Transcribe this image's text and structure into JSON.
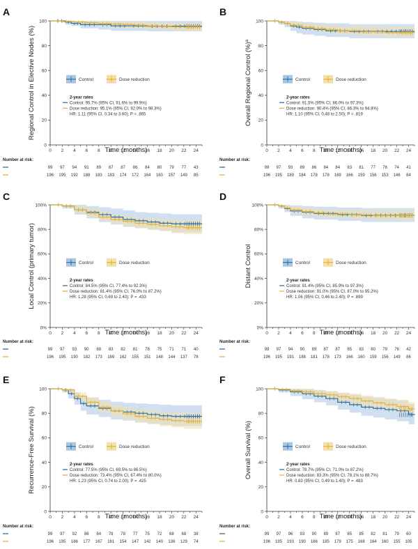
{
  "colors": {
    "control": "#2f6f9e",
    "dose_reduction": "#e3b23c",
    "control_band": "#a9c6e3",
    "dose_band": "#f3dfa8",
    "axis": "#333333"
  },
  "x_tick_labels": [
    "0",
    "2",
    "4",
    "6",
    "8",
    "10",
    "12",
    "14",
    "16",
    "18",
    "20",
    "22",
    "24"
  ],
  "chart_data": [
    {
      "panel": "A",
      "type": "line",
      "ylabel": "Regional Control in Elective Nodes (%)",
      "xlabel": "Time (months)",
      "xlim": [
        0,
        25
      ],
      "ylim": [
        0,
        100
      ],
      "y_ticks": [
        0,
        20,
        40,
        60,
        80,
        100
      ],
      "y_tick_labels": [
        "0",
        "20",
        "40",
        "60",
        "80",
        "100"
      ],
      "legend": [
        "Control",
        "Dose reduction"
      ],
      "stats_title": "2-year rates",
      "stats": [
        "Control: 95.7% (95% CI, 91.6% to 99.9%)",
        "Dose reduction: 95.1% (95% CI, 92.0% to 98.3%)",
        "HR: 1.11 (95% CI, 0.34 to 3.60); P = .865"
      ],
      "risk_title": "Number at risk:",
      "risk_control": [
        "99",
        "97",
        "94",
        "91",
        "89",
        "87",
        "87",
        "86",
        "84",
        "80",
        "79",
        "77",
        "43"
      ],
      "risk_dose": [
        "196",
        "195",
        "192",
        "188",
        "183",
        "183",
        "174",
        "172",
        "164",
        "160",
        "157",
        "149",
        "85"
      ],
      "series": [
        {
          "name": "Control",
          "x": [
            0,
            2.5,
            3.5,
            5,
            8,
            10,
            13,
            16,
            20,
            25
          ],
          "y": [
            100,
            99,
            98,
            97,
            97,
            96,
            96,
            95.7,
            95.7,
            95.7
          ],
          "lo": [
            100,
            97,
            96,
            94,
            93,
            92,
            92,
            91.6,
            91.6,
            91.6
          ],
          "hi": [
            100,
            100,
            100,
            99.9,
            99.9,
            99.9,
            99.9,
            99.9,
            99.9,
            99.9
          ]
        },
        {
          "name": "Dose reduction",
          "x": [
            0,
            2,
            4,
            6,
            8,
            10,
            12,
            14,
            16,
            18,
            20,
            22,
            25
          ],
          "y": [
            100,
            99.5,
            99,
            98.5,
            98,
            97.5,
            97,
            96.5,
            96,
            95.5,
            95.2,
            95.1,
            95.1
          ],
          "lo": [
            100,
            98.5,
            97.5,
            96.5,
            96,
            95,
            94.5,
            94,
            93.5,
            93,
            92.5,
            92,
            92
          ],
          "hi": [
            100,
            100,
            100,
            100,
            99.8,
            99.5,
            99.2,
            99,
            98.8,
            98.5,
            98.4,
            98.3,
            98.3
          ]
        }
      ]
    },
    {
      "panel": "B",
      "type": "line",
      "ylabel": "Overall Regional Control (%)",
      "ylabel_sup": "a",
      "xlabel": "Time (months)",
      "xlim": [
        0,
        25
      ],
      "ylim": [
        0,
        100
      ],
      "y_ticks": [
        0,
        20,
        40,
        60,
        80,
        100
      ],
      "y_tick_labels": [
        "0",
        "20",
        "40",
        "60",
        "80",
        "100"
      ],
      "legend": [
        "Control",
        "Dose reduction"
      ],
      "stats_title": "2-year rates",
      "stats": [
        "Control: 91.5% (95% CI, 86.0% to 97.3%)",
        "Dose reduction: 90.4% (95% CI, 86.3% to 94.8%)",
        "HR: 1.10 (95% CI, 0.48 to 2.50); P = .819"
      ],
      "risk_title": "Number at risk:",
      "risk_control": [
        "99",
        "97",
        "93",
        "89",
        "86",
        "84",
        "84",
        "83",
        "81",
        "77",
        "76",
        "74",
        "41"
      ],
      "risk_dose": [
        "196",
        "195",
        "189",
        "184",
        "178",
        "178",
        "169",
        "166",
        "159",
        "156",
        "153",
        "146",
        "84"
      ],
      "series": [
        {
          "name": "Control",
          "x": [
            0,
            2,
            3,
            4,
            5,
            6,
            8,
            10,
            14,
            18,
            25
          ],
          "y": [
            100,
            99,
            98,
            96,
            95,
            94,
            93,
            92,
            91.5,
            91.5,
            91.5
          ],
          "lo": [
            100,
            97,
            95,
            92,
            90,
            89,
            88,
            87,
            86,
            86,
            86
          ],
          "hi": [
            100,
            100,
            100,
            99.9,
            99.5,
            99,
            98.5,
            98,
            97.3,
            97.3,
            97.3
          ]
        },
        {
          "name": "Dose reduction",
          "x": [
            0,
            2,
            3,
            4,
            6,
            8,
            10,
            12,
            16,
            20,
            25
          ],
          "y": [
            100,
            99,
            98,
            96.5,
            95,
            94,
            93,
            92,
            91.2,
            90.6,
            90.4
          ],
          "lo": [
            100,
            98,
            96.5,
            94.5,
            92.5,
            91,
            90,
            89,
            88,
            87,
            86.3
          ],
          "hi": [
            100,
            100,
            99.8,
            99,
            98,
            97.3,
            96.5,
            96,
            95.5,
            95,
            94.8
          ]
        }
      ]
    },
    {
      "panel": "C",
      "type": "line",
      "ylabel": "Local Control (primary tumor)",
      "xlabel": "Time (months)",
      "xlim": [
        0,
        25
      ],
      "ylim": [
        0,
        100
      ],
      "y_ticks": [
        0,
        20,
        40,
        60,
        80,
        100
      ],
      "y_tick_labels": [
        "0%",
        "20%",
        "40%",
        "60%",
        "80%",
        "100%"
      ],
      "legend": [
        "Control",
        "Dose reduction"
      ],
      "stats_title": "2-year rates",
      "stats": [
        "Control: 84.5% (95% CI, 77.4% to 92.3%)",
        "Dose reduction: 81.4% (95% CI, 76.0% to 87.2%)",
        "HR: 1.28 (95% CI, 0.69 to 2.40); P = .433"
      ],
      "risk_title": "Number at risk:",
      "risk_control": [
        "99",
        "97",
        "93",
        "90",
        "88",
        "83",
        "82",
        "81",
        "78",
        "75",
        "71",
        "71",
        "40"
      ],
      "risk_dose": [
        "196",
        "195",
        "190",
        "182",
        "173",
        "169",
        "162",
        "155",
        "151",
        "148",
        "144",
        "137",
        "78"
      ],
      "series": [
        {
          "name": "Control",
          "x": [
            0,
            2,
            4,
            6,
            8,
            10,
            12,
            14,
            16,
            18,
            20,
            25
          ],
          "y": [
            100,
            99,
            96,
            94,
            92,
            90,
            88,
            87,
            86,
            85,
            84.5,
            84.5
          ],
          "lo": [
            100,
            97,
            92,
            89,
            86,
            84,
            82,
            81,
            80,
            79,
            77.4,
            77.4
          ],
          "hi": [
            100,
            100,
            100,
            99,
            98,
            97,
            95.5,
            94,
            93.5,
            93,
            92.3,
            92.3
          ]
        },
        {
          "name": "Dose reduction",
          "x": [
            0,
            2,
            4,
            6,
            8,
            10,
            12,
            14,
            16,
            18,
            20,
            22,
            25
          ],
          "y": [
            100,
            99,
            96,
            93,
            90,
            88,
            86.5,
            85,
            84,
            83,
            82,
            81.4,
            81.4
          ],
          "lo": [
            100,
            98,
            93,
            90,
            87,
            84.5,
            82.5,
            81,
            79.5,
            78.5,
            77,
            76,
            76
          ],
          "hi": [
            100,
            100,
            99,
            97,
            94.5,
            92,
            90.5,
            89.5,
            88.5,
            88,
            87.5,
            87.2,
            87.2
          ]
        }
      ]
    },
    {
      "panel": "D",
      "type": "line",
      "ylabel": "Distant Control",
      "xlabel": "Time (months)",
      "xlim": [
        0,
        25
      ],
      "ylim": [
        0,
        100
      ],
      "y_ticks": [
        0,
        20,
        40,
        60,
        80,
        100
      ],
      "y_tick_labels": [
        "0%",
        "20%",
        "40%",
        "60%",
        "80%",
        "100%"
      ],
      "legend": [
        "Control",
        "Dose reduction"
      ],
      "stats_title": "2-year rates",
      "stats": [
        "Control: 91.4% (95% CI, 85.9% to 97.3%)",
        "Dose reduction: 91.0% (95% CI, 87.0% to 95.2%)",
        "HR: 1.06 (95% CI, 0.46 to 2.40); P = .899"
      ],
      "risk_title": "Number at risk:",
      "risk_control": [
        "99",
        "97",
        "94",
        "90",
        "89",
        "87",
        "87",
        "85",
        "83",
        "80",
        "79",
        "76",
        "42"
      ],
      "risk_dose": [
        "196",
        "195",
        "191",
        "188",
        "181",
        "178",
        "173",
        "166",
        "160",
        "159",
        "156",
        "149",
        "86"
      ],
      "series": [
        {
          "name": "Control",
          "x": [
            0,
            2,
            3,
            4,
            6,
            8,
            12,
            16,
            25
          ],
          "y": [
            100,
            99,
            97,
            95,
            94,
            93,
            92,
            91.4,
            91.4
          ],
          "lo": [
            100,
            97,
            94,
            91,
            89,
            88,
            87,
            86,
            85.9
          ],
          "hi": [
            100,
            100,
            100,
            99.5,
            99,
            98.5,
            97.8,
            97.3,
            97.3
          ]
        },
        {
          "name": "Dose reduction",
          "x": [
            0,
            2,
            3,
            4,
            6,
            8,
            10,
            14,
            18,
            25
          ],
          "y": [
            100,
            99,
            97.5,
            96,
            94.5,
            93.5,
            92.5,
            91.8,
            91.2,
            91
          ],
          "lo": [
            100,
            98,
            95.5,
            93.5,
            91.5,
            90.5,
            89.5,
            88.5,
            87.5,
            87
          ],
          "hi": [
            100,
            100,
            99.5,
            98.5,
            97.5,
            96.5,
            96,
            95.6,
            95.3,
            95.2
          ]
        }
      ]
    },
    {
      "panel": "E",
      "type": "line",
      "ylabel": "Recurrence-Free Survival (%)",
      "xlabel": "Time (months)",
      "xlim": [
        0,
        25
      ],
      "ylim": [
        0,
        100
      ],
      "y_ticks": [
        0,
        20,
        40,
        60,
        80,
        100
      ],
      "y_tick_labels": [
        "0",
        "20",
        "40",
        "60",
        "80",
        "100"
      ],
      "legend": [
        "Control",
        "Dose reduction"
      ],
      "stats_title": "2-year rates",
      "stats": [
        "Control: 77.5% (95% CI, 69.5% to 86.5%)",
        "Dose reduction: 73.4% (95% CI, 67.4% to 80.0%)",
        "HR: 1.23 (95% CI, 0.74 to 2.00); P = .425"
      ],
      "risk_title": "Number at risk:",
      "risk_control": [
        "99",
        "97",
        "92",
        "86",
        "84",
        "78",
        "78",
        "77",
        "75",
        "72",
        "68",
        "68",
        "38"
      ],
      "risk_dose": [
        "196",
        "195",
        "186",
        "177",
        "167",
        "161",
        "154",
        "147",
        "142",
        "140",
        "136",
        "129",
        "74"
      ],
      "series": [
        {
          "name": "Control",
          "x": [
            0,
            2,
            3,
            4,
            5,
            6,
            8,
            10,
            12,
            14,
            16,
            18,
            20,
            25
          ],
          "y": [
            100,
            99,
            96,
            92,
            88,
            86,
            84,
            82,
            81,
            80,
            79,
            78,
            77.5,
            77.5
          ],
          "lo": [
            100,
            97,
            92,
            87,
            82,
            79,
            77,
            75,
            74,
            72.5,
            71.5,
            70.5,
            69.5,
            69.5
          ],
          "hi": [
            100,
            100,
            100,
            97,
            94,
            93,
            91,
            89.5,
            88.5,
            88,
            87.5,
            87,
            86.5,
            86.5
          ]
        },
        {
          "name": "Dose reduction",
          "x": [
            0,
            2,
            4,
            6,
            8,
            10,
            12,
            14,
            16,
            18,
            20,
            22,
            25
          ],
          "y": [
            100,
            99,
            94,
            89,
            85,
            82,
            79.5,
            77.5,
            76,
            75,
            74,
            73.4,
            73.4
          ],
          "lo": [
            100,
            97.5,
            90.5,
            85,
            80.5,
            77.5,
            74.5,
            72.5,
            71,
            69.5,
            68.5,
            67.4,
            67.4
          ],
          "hi": [
            100,
            100,
            97,
            93,
            89.5,
            86.5,
            84.5,
            83,
            82,
            81,
            80.5,
            80,
            80
          ]
        }
      ]
    },
    {
      "panel": "F",
      "type": "line",
      "ylabel": "Overall Survival (%)",
      "xlabel": "Time (months)",
      "xlim": [
        0,
        25
      ],
      "ylim": [
        0,
        100
      ],
      "y_ticks": [
        0,
        20,
        40,
        60,
        80,
        100
      ],
      "y_tick_labels": [
        "0",
        "20",
        "40",
        "60",
        "80",
        "100"
      ],
      "legend": [
        "Control",
        "Dose reduction"
      ],
      "stats_title": "2-year rates",
      "stats": [
        "Control: 78.7% (95% CI, 71.0% to 87.2%)",
        "Dose reduction: 83.3% (95% CI, 78.1% to 88.7%)",
        "HR: 0.83 (95% CI, 0.49 to 1.40); P = .483"
      ],
      "risk_title": "Number at risk:",
      "risk_control": [
        "99",
        "97",
        "96",
        "93",
        "90",
        "89",
        "87",
        "85",
        "85",
        "82",
        "81",
        "79",
        "60"
      ],
      "risk_dose": [
        "196",
        "195",
        "193",
        "190",
        "186",
        "185",
        "179",
        "175",
        "168",
        "164",
        "160",
        "155",
        "105"
      ],
      "series": [
        {
          "name": "Control",
          "x": [
            0,
            2,
            4,
            6,
            8,
            10,
            12,
            14,
            16,
            18,
            20,
            22,
            24,
            25
          ],
          "y": [
            100,
            99,
            97.5,
            96,
            94,
            92,
            89,
            87,
            85,
            84,
            83,
            82,
            79,
            78.7
          ],
          "lo": [
            100,
            97,
            94,
            91.5,
            89,
            86.5,
            83,
            80.5,
            78,
            76.5,
            75,
            73.5,
            71,
            71
          ],
          "hi": [
            100,
            100,
            100,
            99.8,
            99,
            98,
            96.5,
            95,
            93.5,
            92.5,
            91.5,
            90.5,
            87.5,
            87.2
          ]
        },
        {
          "name": "Dose reduction",
          "x": [
            0,
            2,
            4,
            6,
            8,
            10,
            12,
            14,
            16,
            18,
            20,
            22,
            24,
            25
          ],
          "y": [
            100,
            99.5,
            98.5,
            97.5,
            96,
            95,
            93.5,
            92,
            90,
            88.5,
            87,
            85.5,
            83.5,
            83.3
          ],
          "lo": [
            100,
            98.5,
            96.5,
            95,
            93,
            91.5,
            89.5,
            87.5,
            85.5,
            83.5,
            82,
            80.5,
            78.5,
            78.1
          ],
          "hi": [
            100,
            100,
            100,
            99.8,
            98.8,
            98,
            97,
            96,
            94.5,
            93.5,
            92.2,
            91,
            89,
            88.7
          ]
        }
      ]
    }
  ]
}
